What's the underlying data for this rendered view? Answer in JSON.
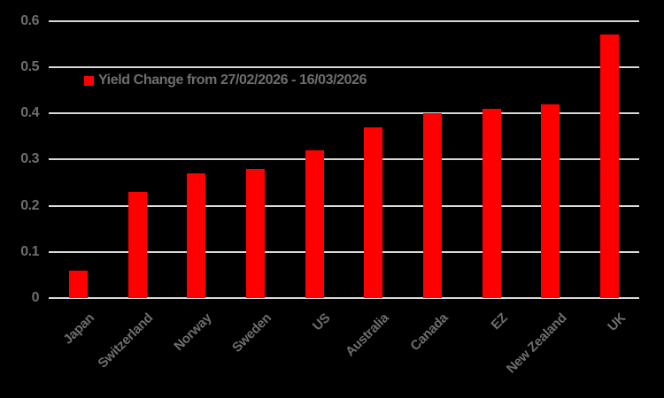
{
  "chart_data": {
    "type": "bar",
    "title": "",
    "xlabel": "",
    "ylabel": "",
    "categories": [
      "Japan",
      "Switzerland",
      "Norway",
      "Sweden",
      "US",
      "Australia",
      "Canada",
      "EZ",
      "New Zealand",
      "UK"
    ],
    "values": [
      0.06,
      0.23,
      0.27,
      0.28,
      0.32,
      0.37,
      0.4,
      0.41,
      0.42,
      0.57
    ],
    "series_name": "Yield Change from 27/02/2026 - 16/03/2026",
    "ylim": [
      0,
      0.6
    ],
    "ytick_labels": [
      "0",
      "0.1",
      "0.2",
      "0.3",
      "0.4",
      "0.5",
      "0.6"
    ],
    "ytick_values": [
      0,
      0.1,
      0.2,
      0.3,
      0.4,
      0.5,
      0.6
    ],
    "grid": true,
    "legend_position": "inside-top-left",
    "colors": {
      "background": "#000000",
      "bar": "#ff0000",
      "gridline": "#d9d9d9",
      "axis_label": "#6e6e6e"
    }
  },
  "legend": {
    "label": "Yield Change from 27/02/2026 - 16/03/2026"
  }
}
